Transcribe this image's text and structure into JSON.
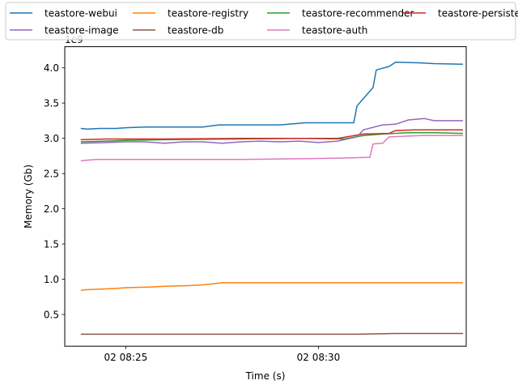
{
  "chart_data": {
    "type": "line",
    "xlabel": "Time (s)",
    "ylabel": "Memory (Gb)",
    "y_offset_text": "1e9",
    "x_range": [
      "08:23:25",
      "08:33:50"
    ],
    "x_ticks": [
      {
        "time": "08:25:00",
        "label": "02 08:25"
      },
      {
        "time": "08:30:00",
        "label": "02 08:30"
      }
    ],
    "ylim": [
      0.05,
      4.3
    ],
    "y_ticks": [
      0.5,
      1.0,
      1.5,
      2.0,
      2.5,
      3.0,
      3.5,
      4.0
    ],
    "y_tick_labels": [
      "0.5",
      "1.0",
      "1.5",
      "2.0",
      "2.5",
      "3.0",
      "3.5",
      "4.0"
    ],
    "grid": false,
    "legend_placement": "top, outside plot, 4 columns",
    "series": [
      {
        "name": "teastore-webui",
        "color": "#1f77b4",
        "points": [
          [
            "08:23:50",
            3.14
          ],
          [
            "08:24:00",
            3.13
          ],
          [
            "08:24:20",
            3.14
          ],
          [
            "08:24:45",
            3.14
          ],
          [
            "08:25:00",
            3.15
          ],
          [
            "08:25:30",
            3.16
          ],
          [
            "08:27:00",
            3.16
          ],
          [
            "08:27:25",
            3.19
          ],
          [
            "08:29:00",
            3.19
          ],
          [
            "08:29:40",
            3.22
          ],
          [
            "08:30:55",
            3.22
          ],
          [
            "08:31:00",
            3.46
          ],
          [
            "08:31:25",
            3.72
          ],
          [
            "08:31:30",
            3.97
          ],
          [
            "08:31:50",
            4.02
          ],
          [
            "08:32:00",
            4.08
          ],
          [
            "08:32:40",
            4.07
          ],
          [
            "08:33:00",
            4.06
          ],
          [
            "08:33:45",
            4.05
          ]
        ]
      },
      {
        "name": "teastore-registry",
        "color": "#ff7f0e",
        "points": [
          [
            "08:23:50",
            0.84
          ],
          [
            "08:23:55",
            0.85
          ],
          [
            "08:24:20",
            0.86
          ],
          [
            "08:24:45",
            0.87
          ],
          [
            "08:25:00",
            0.88
          ],
          [
            "08:25:40",
            0.89
          ],
          [
            "08:26:00",
            0.9
          ],
          [
            "08:26:40",
            0.91
          ],
          [
            "08:27:00",
            0.92
          ],
          [
            "08:27:30",
            0.95
          ],
          [
            "08:29:00",
            0.95
          ],
          [
            "08:31:00",
            0.95
          ],
          [
            "08:33:45",
            0.95
          ]
        ]
      },
      {
        "name": "teastore-recommender",
        "color": "#2ca02c",
        "points": [
          [
            "08:23:50",
            2.95
          ],
          [
            "08:24:30",
            2.96
          ],
          [
            "08:25:00",
            2.97
          ],
          [
            "08:26:00",
            2.98
          ],
          [
            "08:28:00",
            2.99
          ],
          [
            "08:29:30",
            3.0
          ],
          [
            "08:30:40",
            2.99
          ],
          [
            "08:31:10",
            3.04
          ],
          [
            "08:31:40",
            3.06
          ],
          [
            "08:32:20",
            3.08
          ],
          [
            "08:33:00",
            3.08
          ],
          [
            "08:33:45",
            3.07
          ]
        ]
      },
      {
        "name": "teastore-persistence",
        "color": "#d62728",
        "points": [
          [
            "08:23:50",
            2.98
          ],
          [
            "08:24:30",
            2.99
          ],
          [
            "08:26:00",
            2.99
          ],
          [
            "08:28:00",
            3.0
          ],
          [
            "08:30:30",
            3.0
          ],
          [
            "08:31:10",
            3.06
          ],
          [
            "08:31:50",
            3.07
          ],
          [
            "08:32:00",
            3.11
          ],
          [
            "08:32:30",
            3.12
          ],
          [
            "08:33:45",
            3.12
          ]
        ]
      },
      {
        "name": "teastore-image",
        "color": "#9467bd",
        "points": [
          [
            "08:23:50",
            2.93
          ],
          [
            "08:24:30",
            2.94
          ],
          [
            "08:25:00",
            2.95
          ],
          [
            "08:25:30",
            2.95
          ],
          [
            "08:26:00",
            2.93
          ],
          [
            "08:26:30",
            2.95
          ],
          [
            "08:27:00",
            2.95
          ],
          [
            "08:27:30",
            2.93
          ],
          [
            "08:28:00",
            2.95
          ],
          [
            "08:28:30",
            2.96
          ],
          [
            "08:29:00",
            2.95
          ],
          [
            "08:29:30",
            2.96
          ],
          [
            "08:30:00",
            2.94
          ],
          [
            "08:30:30",
            2.96
          ],
          [
            "08:31:00",
            3.02
          ],
          [
            "08:31:10",
            3.12
          ],
          [
            "08:31:40",
            3.19
          ],
          [
            "08:32:00",
            3.2
          ],
          [
            "08:32:20",
            3.26
          ],
          [
            "08:32:45",
            3.28
          ],
          [
            "08:33:00",
            3.25
          ],
          [
            "08:33:45",
            3.25
          ]
        ]
      },
      {
        "name": "teastore-db",
        "color": "#8c564b",
        "points": [
          [
            "08:23:50",
            0.22
          ],
          [
            "08:26:00",
            0.22
          ],
          [
            "08:28:00",
            0.22
          ],
          [
            "08:30:00",
            0.22
          ],
          [
            "08:31:00",
            0.22
          ],
          [
            "08:32:00",
            0.23
          ],
          [
            "08:33:45",
            0.23
          ]
        ]
      },
      {
        "name": "teastore-auth",
        "color": "#e377c2",
        "points": [
          [
            "08:23:50",
            2.68
          ],
          [
            "08:24:00",
            2.69
          ],
          [
            "08:24:15",
            2.7
          ],
          [
            "08:26:00",
            2.7
          ],
          [
            "08:28:00",
            2.7
          ],
          [
            "08:29:30",
            2.71
          ],
          [
            "08:30:40",
            2.72
          ],
          [
            "08:31:20",
            2.73
          ],
          [
            "08:31:25",
            2.92
          ],
          [
            "08:31:40",
            2.93
          ],
          [
            "08:31:50",
            3.02
          ],
          [
            "08:32:40",
            3.04
          ],
          [
            "08:33:10",
            3.04
          ],
          [
            "08:33:45",
            3.04
          ]
        ]
      }
    ]
  }
}
